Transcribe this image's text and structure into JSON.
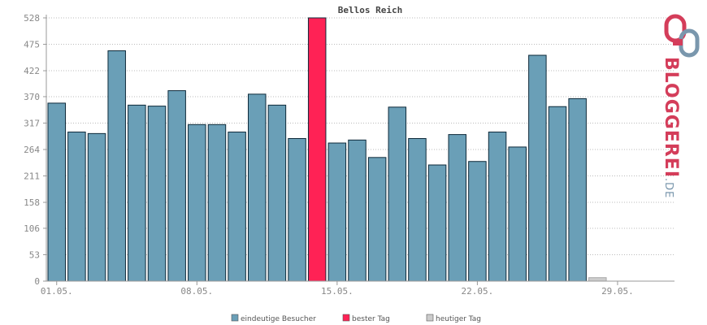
{
  "chart_data": {
    "type": "bar",
    "title": "Bellos Reich",
    "y_ticks": [
      "0",
      "53",
      "106",
      "158",
      "211",
      "264",
      "317",
      "370",
      "422",
      "475",
      "528"
    ],
    "ylim": [
      0,
      528
    ],
    "x_tick_labels": [
      "01.05.",
      "08.05.",
      "15.05.",
      "22.05.",
      "29.05."
    ],
    "x_tick_day_index": [
      1,
      8,
      15,
      22,
      29
    ],
    "days": 31,
    "series": [
      {
        "name": "eindeutige Besucher",
        "values": [
          357,
          299,
          296,
          462,
          353,
          351,
          382,
          314,
          314,
          299,
          375,
          353,
          286,
          null,
          277,
          283,
          248,
          349,
          286,
          233,
          294,
          240,
          299,
          269,
          453,
          350,
          366,
          null,
          null,
          null,
          null
        ]
      },
      {
        "name": "bester Tag",
        "values": [
          null,
          null,
          null,
          null,
          null,
          null,
          null,
          null,
          null,
          null,
          null,
          null,
          null,
          528,
          null,
          null,
          null,
          null,
          null,
          null,
          null,
          null,
          null,
          null,
          null,
          null,
          null,
          null,
          null,
          null,
          null
        ]
      },
      {
        "name": "heutiger Tag",
        "values": [
          null,
          null,
          null,
          null,
          null,
          null,
          null,
          null,
          null,
          null,
          null,
          null,
          null,
          null,
          null,
          null,
          null,
          null,
          null,
          null,
          null,
          null,
          null,
          null,
          null,
          null,
          null,
          7,
          null,
          null,
          null
        ]
      }
    ],
    "colors": {
      "eindeutige Besucher": "#6a9fb7",
      "bester Tag": "#ff2255",
      "heutiger Tag": "#cccccc",
      "bar_stroke": "#0e2a3a",
      "grid": "#bbbbbb",
      "axis": "#999999",
      "tick_text": "#888888",
      "title": "#444444"
    },
    "grid": true,
    "legend_position": "bottom"
  },
  "logo": {
    "text_main": "BLOGGEREI",
    "text_suffix": ".DE",
    "icon": "bloggerei-logo-icon"
  }
}
